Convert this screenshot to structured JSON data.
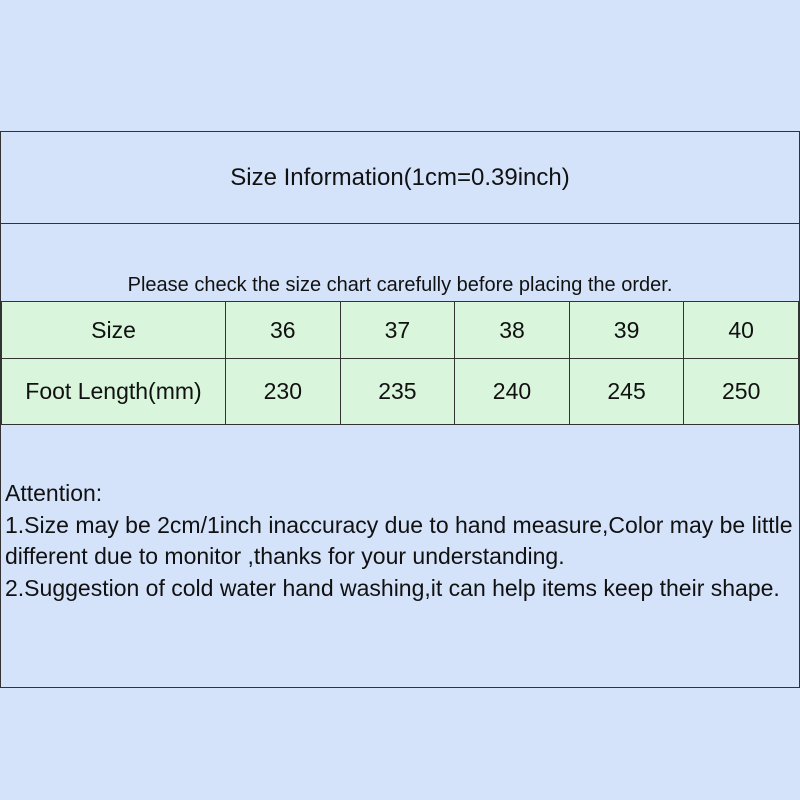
{
  "header": {
    "title": "Size Information(1cm=0.39inch)",
    "note": "Please check the size chart carefully before placing the order."
  },
  "table": {
    "rows": [
      [
        "Size",
        "36",
        "37",
        "38",
        "39",
        "40"
      ],
      [
        "Foot Length(mm)",
        "230",
        "235",
        "240",
        "245",
        "250"
      ]
    ]
  },
  "attention": {
    "heading": "Attention:",
    "lines": [
      "1.Size may be 2cm/1inch inaccuracy due to hand measure,Color may be little different due to monitor ,thanks for your understanding.",
      "2.Suggestion of cold water hand washing,it can help items keep their shape."
    ]
  }
}
